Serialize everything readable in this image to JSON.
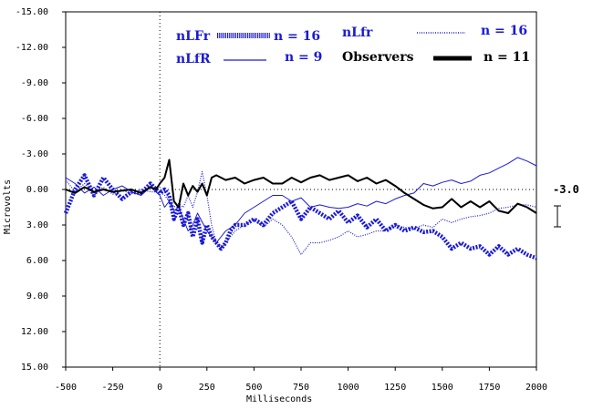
{
  "chart_data": {
    "type": "line",
    "xlabel": "Milliseconds",
    "ylabel": "Microvolts",
    "xlim": [
      -500,
      2000
    ],
    "ylim": [
      -15,
      15
    ],
    "y_inverted": true,
    "x_ticks": [
      "-500",
      "-250",
      "0",
      "250",
      "500",
      "750",
      "1000",
      "1250",
      "1500",
      "1750",
      "2000"
    ],
    "y_ticks": [
      "-15.00",
      "-12.00",
      "-9.00",
      "-6.00",
      "-3.00",
      "0.00",
      "3.00",
      "6.00",
      "9.00",
      "12.00",
      "15.00"
    ],
    "scale_bar_label": "-3.0",
    "zero_line": "dotted",
    "onset_line": "dotted at x=0",
    "grid": false,
    "legend_entries": [
      {
        "label": "nLFr",
        "n_label": "n = 16",
        "color": "#1a1ad6",
        "style": "heavy dashed"
      },
      {
        "label": "nLfr",
        "n_label": "n = 16",
        "color": "#1a1ad6",
        "style": "dotted"
      },
      {
        "label": "nLfR",
        "n_label": "n = 9",
        "color": "#1a1ad6",
        "style": "thin solid"
      },
      {
        "label": "Observers",
        "n_label": "n = 11",
        "color": "#000000",
        "style": "thick solid"
      }
    ],
    "series": [
      {
        "name": "nLFr",
        "style": "heavy-dashed",
        "color": "#1a1ad6",
        "x": [
          -500,
          -450,
          -400,
          -350,
          -300,
          -250,
          -200,
          -150,
          -100,
          -50,
          0,
          25,
          50,
          75,
          100,
          125,
          150,
          175,
          200,
          225,
          250,
          275,
          300,
          325,
          350,
          375,
          400,
          450,
          500,
          550,
          600,
          650,
          700,
          750,
          800,
          850,
          900,
          950,
          1000,
          1050,
          1100,
          1150,
          1200,
          1250,
          1300,
          1350,
          1400,
          1450,
          1500,
          1550,
          1600,
          1650,
          1700,
          1750,
          1800,
          1850,
          1900,
          1950,
          2000
        ],
        "y": [
          2.0,
          0.0,
          -1.2,
          0.5,
          -1.0,
          0.0,
          0.8,
          0.2,
          0.3,
          -0.5,
          0.3,
          0.0,
          0.5,
          2.5,
          1.5,
          3.0,
          2.0,
          4.0,
          2.5,
          4.5,
          3.0,
          4.0,
          4.5,
          5.0,
          4.5,
          3.5,
          3.0,
          3.0,
          2.5,
          3.0,
          2.0,
          1.5,
          1.0,
          2.5,
          1.5,
          2.0,
          2.5,
          1.8,
          2.8,
          2.2,
          3.2,
          2.5,
          3.5,
          3.0,
          3.5,
          3.2,
          3.6,
          3.5,
          4.0,
          5.0,
          4.5,
          5.0,
          4.8,
          5.5,
          4.8,
          5.5,
          5.0,
          5.5,
          5.8
        ]
      },
      {
        "name": "nLfr",
        "style": "dotted",
        "color": "#1a1ad6",
        "x": [
          -500,
          -450,
          -400,
          -350,
          -300,
          -250,
          -200,
          -150,
          -100,
          -50,
          0,
          25,
          50,
          75,
          100,
          125,
          150,
          175,
          200,
          225,
          250,
          275,
          300,
          325,
          350,
          400,
          450,
          500,
          550,
          600,
          650,
          700,
          750,
          800,
          850,
          900,
          950,
          1000,
          1050,
          1100,
          1150,
          1200,
          1250,
          1300,
          1350,
          1400,
          1450,
          1500,
          1550,
          1600,
          1650,
          1700,
          1750,
          1800,
          1850,
          1900,
          1950,
          2000
        ],
        "y": [
          -0.8,
          0.2,
          -0.5,
          0.3,
          -0.2,
          0.4,
          0.1,
          0.3,
          0.0,
          0.2,
          0.2,
          0.5,
          1.0,
          1.5,
          1.2,
          1.5,
          0.5,
          1.5,
          0.2,
          -1.5,
          0.5,
          3.0,
          4.5,
          5.0,
          4.5,
          3.5,
          3.0,
          2.5,
          3.2,
          2.5,
          3.0,
          4.0,
          5.5,
          4.5,
          4.5,
          4.3,
          4.0,
          3.5,
          4.0,
          3.8,
          3.5,
          3.5,
          3.0,
          3.2,
          3.3,
          3.0,
          3.2,
          2.5,
          2.8,
          2.5,
          2.3,
          2.2,
          2.0,
          1.6,
          1.5,
          1.3,
          1.3,
          1.5
        ]
      },
      {
        "name": "nLfR",
        "style": "thin-solid",
        "color": "#1a1ad6",
        "x": [
          -500,
          -450,
          -400,
          -350,
          -300,
          -250,
          -200,
          -150,
          -100,
          -50,
          0,
          25,
          50,
          75,
          100,
          125,
          150,
          175,
          200,
          250,
          300,
          350,
          400,
          450,
          500,
          550,
          600,
          650,
          700,
          750,
          800,
          850,
          900,
          950,
          1000,
          1050,
          1100,
          1150,
          1200,
          1250,
          1300,
          1350,
          1400,
          1450,
          1500,
          1550,
          1600,
          1650,
          1700,
          1750,
          1800,
          1850,
          1900,
          1950,
          2000
        ],
        "y": [
          -1.0,
          -0.5,
          0.3,
          -0.2,
          0.5,
          0.0,
          -0.3,
          0.2,
          0.5,
          -0.2,
          0.5,
          1.5,
          1.0,
          1.8,
          1.5,
          2.5,
          3.5,
          3.0,
          2.0,
          3.5,
          4.5,
          3.5,
          3.0,
          2.0,
          1.5,
          1.0,
          0.5,
          0.5,
          1.0,
          0.7,
          1.5,
          1.3,
          1.5,
          1.6,
          1.5,
          1.2,
          1.4,
          1.0,
          1.2,
          0.8,
          0.5,
          0.3,
          -0.5,
          -0.3,
          -0.6,
          -0.8,
          -0.5,
          -0.7,
          -1.2,
          -1.4,
          -1.8,
          -2.2,
          -2.7,
          -2.4,
          -2.0
        ]
      },
      {
        "name": "Observers",
        "style": "thick-solid",
        "color": "#000000",
        "x": [
          -500,
          -450,
          -400,
          -350,
          -300,
          -250,
          -200,
          -150,
          -100,
          -50,
          -20,
          0,
          25,
          50,
          75,
          100,
          125,
          150,
          175,
          200,
          225,
          250,
          275,
          300,
          350,
          400,
          450,
          500,
          550,
          600,
          650,
          700,
          750,
          800,
          850,
          900,
          950,
          1000,
          1050,
          1100,
          1150,
          1200,
          1250,
          1300,
          1350,
          1400,
          1450,
          1500,
          1550,
          1600,
          1650,
          1700,
          1750,
          1800,
          1850,
          1900,
          1950,
          2000
        ],
        "y": [
          0.0,
          0.3,
          -0.2,
          0.2,
          0.0,
          0.2,
          0.1,
          0.0,
          0.3,
          -0.2,
          0.0,
          -0.5,
          -1.0,
          -2.5,
          1.0,
          1.5,
          -0.5,
          0.5,
          -0.3,
          0.2,
          -0.5,
          0.5,
          -1.0,
          -1.2,
          -0.8,
          -1.0,
          -0.5,
          -0.8,
          -1.0,
          -0.5,
          -0.5,
          -1.0,
          -0.6,
          -1.0,
          -1.2,
          -0.8,
          -1.0,
          -1.2,
          -0.7,
          -1.0,
          -0.5,
          -0.8,
          -0.3,
          0.3,
          0.8,
          1.3,
          1.6,
          1.5,
          0.8,
          1.5,
          1.0,
          1.5,
          1.0,
          1.8,
          2.0,
          1.2,
          1.5,
          2.0
        ]
      }
    ]
  }
}
